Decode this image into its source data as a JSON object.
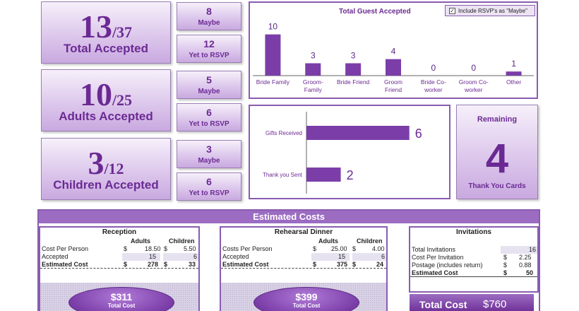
{
  "accepted_tiles": [
    {
      "num": "13",
      "denom": "/37",
      "label": "Total Accepted"
    },
    {
      "num": "10",
      "denom": "/25",
      "label": "Adults Accepted"
    },
    {
      "num": "3",
      "denom": "/12",
      "label": "Children Accepted"
    }
  ],
  "small_tiles": [
    {
      "num": "8",
      "label": "Maybe"
    },
    {
      "num": "12",
      "label": "Yet to RSVP"
    },
    {
      "num": "5",
      "label": "Maybe"
    },
    {
      "num": "6",
      "label": "Yet to RSVP"
    },
    {
      "num": "3",
      "label": "Maybe"
    },
    {
      "num": "6",
      "label": "Yet to RSVP"
    }
  ],
  "guest_chart": {
    "title": "Total Guest Accepted",
    "checkbox_label": "Include RSVP's as \"Maybe\"",
    "checkbox_mark": "✓",
    "bar_color": "#7b3ea8"
  },
  "chart_data": [
    {
      "type": "bar",
      "title": "Total Guest Accepted",
      "categories": [
        "Bride Family",
        "Groom Family",
        "Bride Friend",
        "Groom Friend",
        "Bride Co-worker",
        "Groom Co-worker",
        "Other"
      ],
      "category_lines": [
        [
          "Bride Family"
        ],
        [
          "Groom-",
          "Family"
        ],
        [
          "Bride Friend"
        ],
        [
          "Groom",
          "Friend"
        ],
        [
          "Bride Co-",
          "worker"
        ],
        [
          "Groom Co-",
          "worker"
        ],
        [
          "Other"
        ]
      ],
      "values": [
        10,
        3,
        3,
        4,
        0,
        0,
        1
      ],
      "ylim": [
        0,
        12
      ]
    },
    {
      "type": "bar",
      "orientation": "horizontal",
      "categories": [
        "Gifts Received",
        "Thank you Sent"
      ],
      "values": [
        6,
        2
      ],
      "xlim": [
        0,
        7
      ]
    }
  ],
  "remaining": {
    "title": "Remaining",
    "value": "4",
    "label": "Thank You Cards"
  },
  "costs": {
    "title": "Estimated Costs",
    "reception": {
      "heading": "Reception",
      "col_adults": "Adults",
      "col_children": "Children",
      "rows": [
        {
          "label": "Cost Per Person",
          "cur1": "$",
          "adults": "18.50",
          "cur2": "$",
          "children": "5.50"
        },
        {
          "label": "Accepted",
          "cur1": "",
          "adults": "15",
          "cur2": "",
          "children": "6"
        },
        {
          "label": "Estimated Cost",
          "cur1": "$",
          "adults": "278",
          "cur2": "$",
          "children": "33"
        }
      ],
      "total_amount": "$311",
      "total_label": "Total Cost"
    },
    "rehearsal": {
      "heading": "Rehearsal Dinner",
      "col_adults": "Adults",
      "col_children": "Children",
      "rows": [
        {
          "label": "Costs Per Person",
          "cur1": "$",
          "adults": "25.00",
          "cur2": "$",
          "children": "4.00"
        },
        {
          "label": "Accepted",
          "cur1": "",
          "adults": "15",
          "cur2": "",
          "children": "6"
        },
        {
          "label": "Estimated Cost",
          "cur1": "$",
          "adults": "375",
          "cur2": "$",
          "children": "24"
        }
      ],
      "total_amount": "$399",
      "total_label": "Total Cost"
    },
    "invitations": {
      "heading": "Invitations",
      "rows": [
        {
          "label": "Total Invitations",
          "cur": "",
          "value": "16"
        },
        {
          "label": "Cost Per Invitation",
          "cur": "$",
          "value": "2.25"
        },
        {
          "label": "Postage (includes return)",
          "cur": "$",
          "value": "0.88"
        },
        {
          "label": "Estimated Cost",
          "cur": "$",
          "value": "50"
        }
      ]
    },
    "grand_total_label": "Total Cost",
    "grand_total_amount": "$760"
  }
}
